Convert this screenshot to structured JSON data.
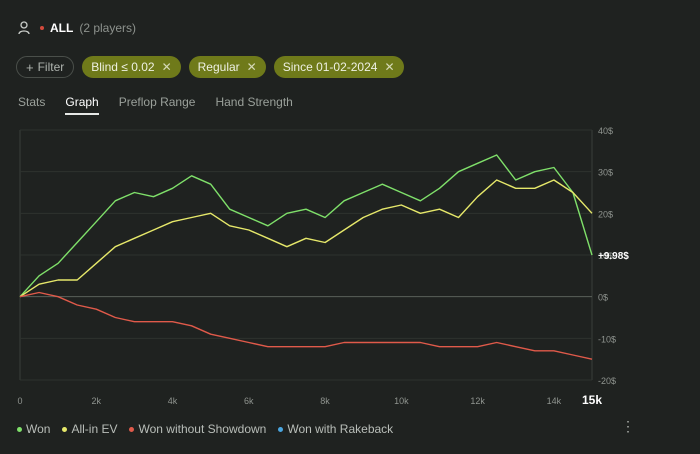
{
  "header": {
    "scope_label": "ALL",
    "players_label": "(2 players)"
  },
  "filters": {
    "add_label": "Filter",
    "chips": [
      {
        "label": "Blind ≤ 0.02"
      },
      {
        "label": "Regular"
      },
      {
        "label": "Since 01-02-2024"
      }
    ]
  },
  "tabs": [
    {
      "label": "Stats",
      "active": false
    },
    {
      "label": "Graph",
      "active": true
    },
    {
      "label": "Preflop Range",
      "active": false
    },
    {
      "label": "Hand Strength",
      "active": false
    }
  ],
  "chart_data": {
    "type": "line",
    "x_ticks": [
      "0",
      "2k",
      "4k",
      "6k",
      "8k",
      "10k",
      "12k",
      "14k",
      "15k"
    ],
    "x_tick_values": [
      0,
      2000,
      4000,
      6000,
      8000,
      10000,
      12000,
      14000,
      15000
    ],
    "y_ticks": [
      "40$",
      "30$",
      "20$",
      "10$",
      "0$",
      "-10$",
      "-20$"
    ],
    "y_tick_values": [
      40,
      30,
      20,
      10,
      0,
      -10,
      -20
    ],
    "xlim": [
      0,
      15000
    ],
    "ylim": [
      -20,
      40
    ],
    "end_label": "+9.98$",
    "series": [
      {
        "name": "Won",
        "color": "#7fe06a",
        "x": [
          0,
          500,
          1000,
          1500,
          2000,
          2500,
          3000,
          3500,
          4000,
          4500,
          5000,
          5500,
          6000,
          6500,
          7000,
          7500,
          8000,
          8500,
          9000,
          9500,
          10000,
          10500,
          11000,
          11500,
          12000,
          12500,
          13000,
          13500,
          14000,
          14500,
          15000
        ],
        "values": [
          0,
          5,
          8,
          13,
          18,
          23,
          25,
          24,
          26,
          29,
          27,
          21,
          19,
          17,
          20,
          21,
          19,
          23,
          25,
          27,
          25,
          23,
          26,
          30,
          32,
          34,
          28,
          30,
          31,
          25,
          9.98
        ]
      },
      {
        "name": "All-in EV",
        "color": "#e6e86a",
        "x": [
          0,
          500,
          1000,
          1500,
          2000,
          2500,
          3000,
          3500,
          4000,
          4500,
          5000,
          5500,
          6000,
          6500,
          7000,
          7500,
          8000,
          8500,
          9000,
          9500,
          10000,
          10500,
          11000,
          11500,
          12000,
          12500,
          13000,
          13500,
          14000,
          14500,
          15000
        ],
        "values": [
          0,
          3,
          4,
          4,
          8,
          12,
          14,
          16,
          18,
          19,
          20,
          17,
          16,
          14,
          12,
          14,
          13,
          16,
          19,
          21,
          22,
          20,
          21,
          19,
          24,
          28,
          26,
          26,
          28,
          25,
          20
        ]
      },
      {
        "name": "Won without Showdown",
        "color": "#e05a4a",
        "x": [
          0,
          500,
          1000,
          1500,
          2000,
          2500,
          3000,
          3500,
          4000,
          4500,
          5000,
          5500,
          6000,
          6500,
          7000,
          7500,
          8000,
          8500,
          9000,
          9500,
          10000,
          10500,
          11000,
          11500,
          12000,
          12500,
          13000,
          13500,
          14000,
          14500,
          15000
        ],
        "values": [
          0,
          1,
          0,
          -2,
          -3,
          -5,
          -6,
          -6,
          -6,
          -7,
          -9,
          -10,
          -11,
          -12,
          -12,
          -12,
          -12,
          -11,
          -11,
          -11,
          -11,
          -11,
          -12,
          -12,
          -12,
          -11,
          -12,
          -13,
          -13,
          -14,
          -15
        ]
      },
      {
        "name": "Won with Rakeback",
        "color": "#4aa6e0",
        "x": [],
        "values": []
      }
    ],
    "grid": true,
    "legend": "bottom-left"
  },
  "more_menu": {
    "glyph": "⋮"
  }
}
